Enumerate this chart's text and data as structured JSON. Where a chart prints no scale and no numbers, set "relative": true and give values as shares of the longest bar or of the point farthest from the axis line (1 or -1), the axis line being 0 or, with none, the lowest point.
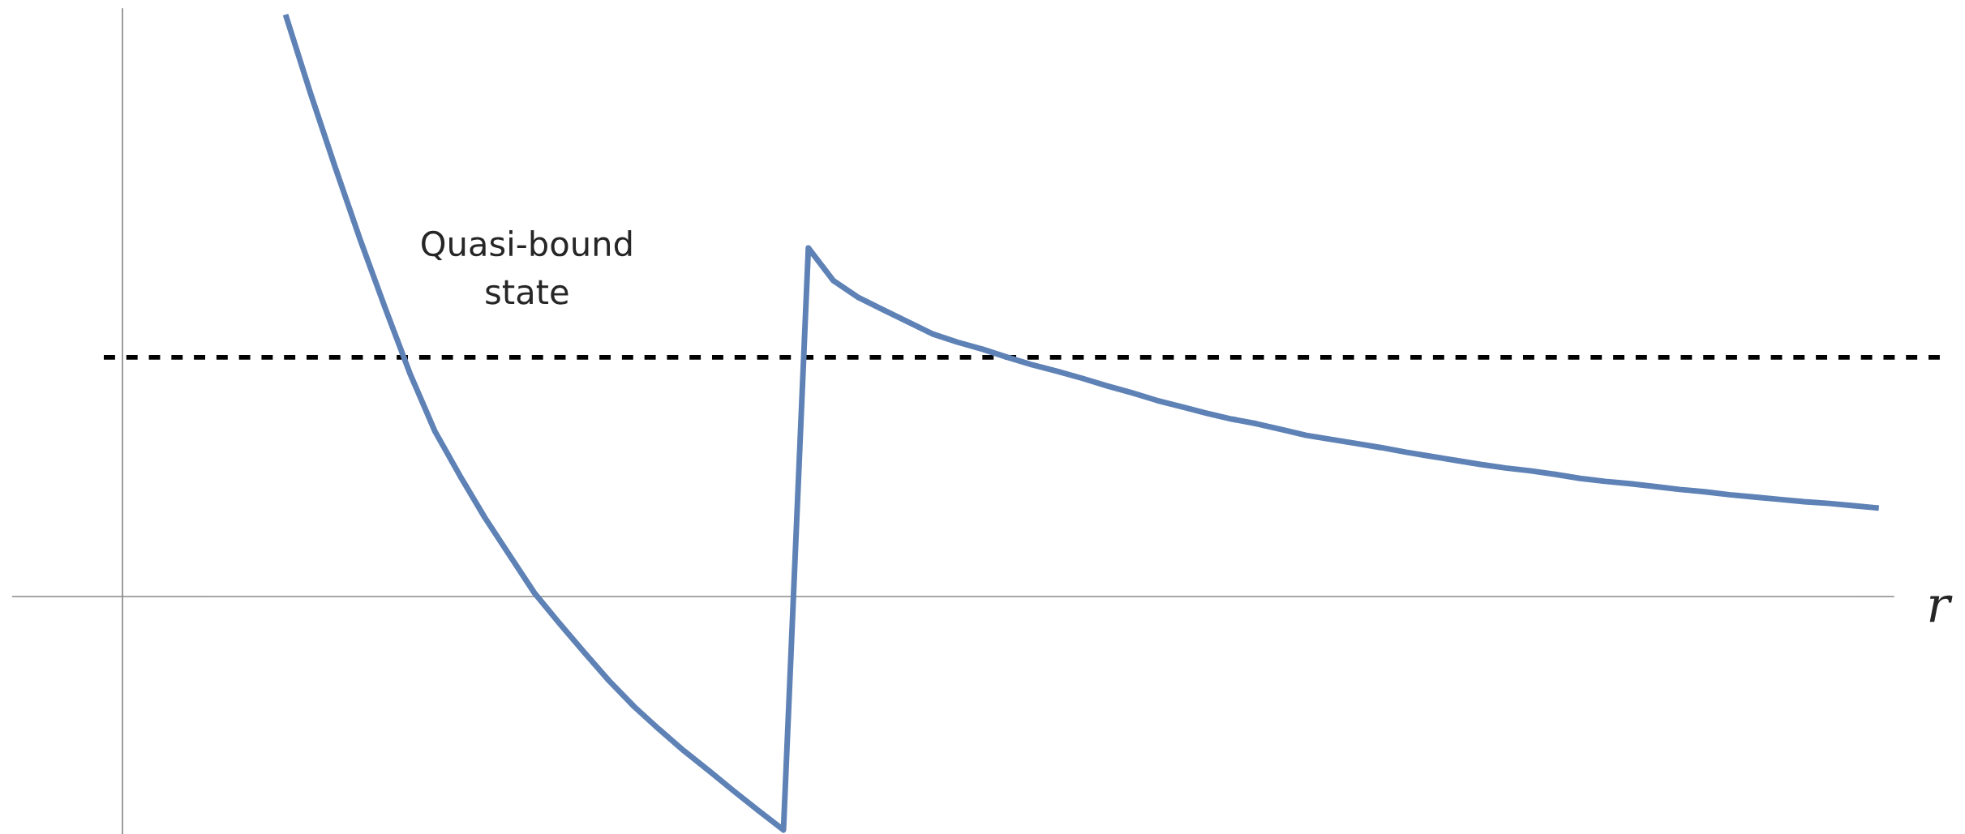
{
  "chart_data": {
    "type": "line",
    "relative": true,
    "xlabel": "r",
    "categories": [
      null,
      null,
      null,
      null,
      null,
      null,
      null,
      null,
      null,
      null,
      null,
      null,
      null,
      null,
      null,
      null,
      null,
      null,
      null,
      null,
      null,
      null,
      null,
      null,
      null,
      null,
      null,
      null,
      null,
      null,
      null,
      null,
      null,
      null,
      null,
      null,
      null,
      null,
      null,
      null,
      null,
      null,
      null,
      null,
      null,
      null,
      null,
      null,
      null,
      null,
      null,
      null,
      null,
      null,
      null,
      null,
      null,
      null,
      null,
      null,
      null,
      null,
      null,
      null,
      null
    ],
    "series": [
      {
        "color": "#5f82b6",
        "values": [
          1.0,
          0.865,
          0.737,
          0.613,
          0.496,
          0.383,
          0.284,
          0.208,
          0.136,
          0.071,
          0.006,
          -0.046,
          -0.096,
          -0.145,
          -0.189,
          -0.228,
          -0.265,
          -0.299,
          -0.334,
          -0.368,
          -0.401,
          0.599,
          0.543,
          0.514,
          0.493,
          0.472,
          0.451,
          0.437,
          0.425,
          0.411,
          0.398,
          0.387,
          0.375,
          0.362,
          0.35,
          0.337,
          0.326,
          0.315,
          0.305,
          0.297,
          0.287,
          0.277,
          0.27,
          0.263,
          0.256,
          0.248,
          0.241,
          0.234,
          0.227,
          0.221,
          0.216,
          0.21,
          0.203,
          0.198,
          0.194,
          0.189,
          0.184,
          0.18,
          0.175,
          0.171,
          0.167,
          0.163,
          0.16,
          0.156,
          0.152
        ]
      }
    ],
    "ref_lines": [
      {
        "axis": "y",
        "value": 0.411,
        "color": "#000000",
        "line_style": "dashed"
      }
    ],
    "annotations": [
      "Quasi-bound\nstate"
    ],
    "marker": "none",
    "line_style": "solid"
  }
}
